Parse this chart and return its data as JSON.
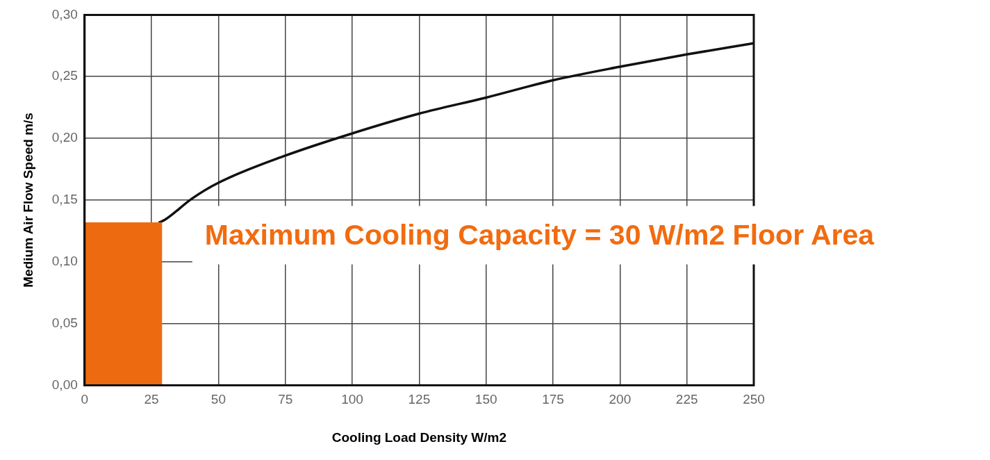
{
  "chart_data": {
    "type": "line",
    "xlabel": "Cooling Load Density W/m2",
    "ylabel": "Medium Air Flow Speed m/s",
    "series": [
      {
        "type": "area",
        "color": "#ee6a10",
        "x": [
          0,
          29
        ],
        "values": [
          0.132,
          0.132
        ]
      },
      {
        "color": "#111111",
        "x": [
          28,
          30,
          40,
          50,
          75,
          100,
          125,
          150,
          175,
          200,
          225,
          250
        ],
        "values": [
          0.132,
          0.134,
          0.151,
          0.164,
          0.186,
          0.204,
          0.22,
          0.233,
          0.247,
          0.258,
          0.268,
          0.277
        ]
      }
    ],
    "xlim": [
      0,
      250
    ],
    "xticks": [
      0,
      25,
      50,
      75,
      100,
      125,
      150,
      175,
      200,
      225,
      250
    ],
    "ylim": [
      0,
      0.3
    ],
    "yticks": [
      {
        "value": 0,
        "label": "0,00"
      },
      {
        "value": 0.05,
        "label": "0,05"
      },
      {
        "value": 0.1,
        "label": "0,10"
      },
      {
        "value": 0.15,
        "label": "0,15"
      },
      {
        "value": 0.2,
        "label": "0,20"
      },
      {
        "value": 0.25,
        "label": "0,25"
      },
      {
        "value": 0.3,
        "label": "0,30"
      }
    ],
    "grid": true,
    "legend": false,
    "marker": "none",
    "line_style": "solid",
    "annotations": [
      "Maximum Cooling Capacity = 30 W/m2 Floor Area"
    ]
  }
}
